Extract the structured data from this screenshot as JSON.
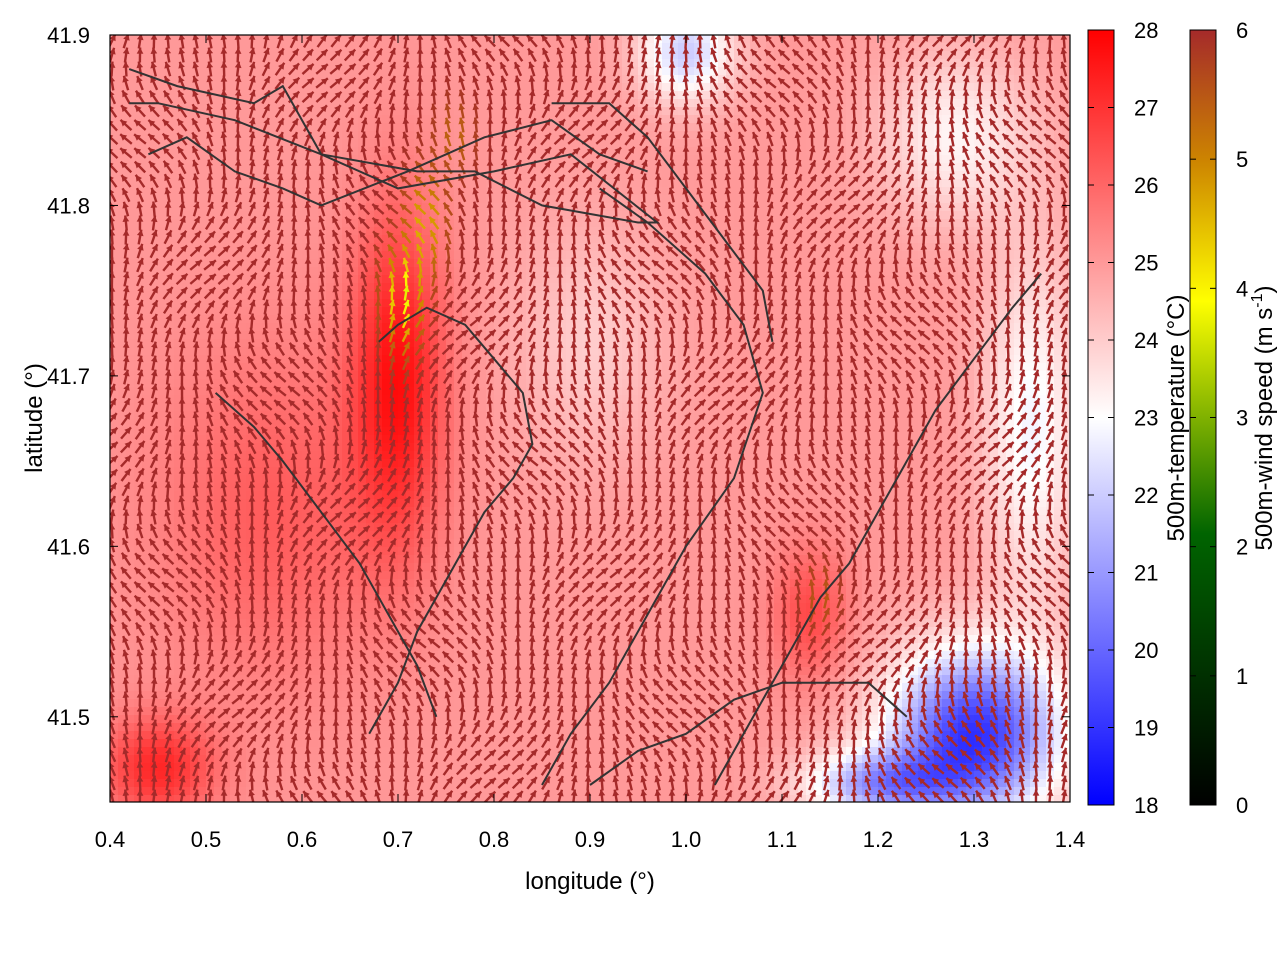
{
  "chart_data": {
    "type": "heatmap",
    "title": "",
    "xlabel": "longitude (°)",
    "ylabel": "latitude (°)",
    "xlim": [
      0.4,
      1.4
    ],
    "ylim": [
      41.45,
      41.9
    ],
    "x_ticks": [
      "0.4",
      "0.5",
      "0.6",
      "0.7",
      "0.8",
      "0.9",
      "1.0",
      "1.1",
      "1.2",
      "1.3",
      "1.4"
    ],
    "y_ticks": [
      "41.5",
      "41.6",
      "41.7",
      "41.8",
      "41.9"
    ],
    "temperature_colorbar": {
      "label": "500m-temperature (°C)",
      "range": [
        18,
        28
      ],
      "ticks": [
        "18",
        "19",
        "20",
        "21",
        "22",
        "23",
        "24",
        "25",
        "26",
        "27",
        "28"
      ],
      "colors": [
        "#0000ff",
        "#ffffff",
        "#ff0000"
      ]
    },
    "wind_colorbar": {
      "label": "500m-wind speed (m s-1)",
      "label_main": "500m-wind speed (m s",
      "label_sup": "-1",
      "label_end": ")",
      "range": [
        0,
        6
      ],
      "ticks": [
        "0",
        "1",
        "2",
        "3",
        "4",
        "5",
        "6"
      ],
      "colors": [
        "#000000",
        "#006400",
        "#ffff00",
        "#cd8500",
        "#a52a2a"
      ]
    },
    "temperature_field": {
      "base": 25.0,
      "features": [
        {
          "lon": 0.7,
          "lat": 41.7,
          "dT": 2.6,
          "slon": 0.05,
          "slat": 0.1
        },
        {
          "lon": 0.45,
          "lat": 41.47,
          "dT": 2.2,
          "slon": 0.06,
          "slat": 0.03
        },
        {
          "lon": 0.57,
          "lat": 41.62,
          "dT": 1.2,
          "slon": 0.12,
          "slat": 0.1
        },
        {
          "lon": 1.13,
          "lat": 41.56,
          "dT": 1.6,
          "slon": 0.04,
          "slat": 0.04
        },
        {
          "lon": 1.3,
          "lat": 41.49,
          "dT": -6.0,
          "slon": 0.09,
          "slat": 0.05
        },
        {
          "lon": 1.2,
          "lat": 41.46,
          "dT": -3.5,
          "slon": 0.08,
          "slat": 0.02
        },
        {
          "lon": 1.36,
          "lat": 41.67,
          "dT": -2.2,
          "slon": 0.05,
          "slat": 0.1
        },
        {
          "lon": 1.0,
          "lat": 41.89,
          "dT": -3.0,
          "slon": 0.05,
          "slat": 0.03
        },
        {
          "lon": 1.28,
          "lat": 41.84,
          "dT": -1.8,
          "slon": 0.08,
          "slat": 0.05
        },
        {
          "lon": 0.9,
          "lat": 41.72,
          "dT": -1.0,
          "slon": 0.08,
          "slat": 0.07
        }
      ]
    },
    "wind_field": {
      "max_speed": 6,
      "slow_zone": [
        {
          "lon": 0.705,
          "lat": 41.745,
          "depth": 3.2,
          "slon": 0.02,
          "slat": 0.03
        },
        {
          "lon": 0.73,
          "lat": 41.79,
          "depth": 2.0,
          "slon": 0.02,
          "slat": 0.03
        },
        {
          "lon": 0.76,
          "lat": 41.84,
          "depth": 1.0,
          "slon": 0.02,
          "slat": 0.02
        },
        {
          "lon": 1.14,
          "lat": 41.57,
          "depth": 0.8,
          "slon": 0.02,
          "slat": 0.02
        }
      ]
    },
    "contours": [
      {
        "lon": [
          0.42,
          0.47,
          0.55,
          0.58,
          0.62,
          0.7,
          0.8,
          0.88,
          0.97,
          0.95,
          0.85,
          0.78,
          0.72,
          0.62,
          0.53,
          0.45,
          0.42
        ],
        "lat": [
          41.88,
          41.87,
          41.86,
          41.87,
          41.83,
          41.81,
          41.82,
          41.83,
          41.79,
          41.79,
          41.8,
          41.82,
          41.82,
          41.83,
          41.85,
          41.86,
          41.86
        ]
      },
      {
        "lon": [
          0.44,
          0.48,
          0.53,
          0.58,
          0.62,
          0.71,
          0.79,
          0.86,
          0.91,
          0.96
        ],
        "lat": [
          41.83,
          41.84,
          41.82,
          41.81,
          41.8,
          41.82,
          41.84,
          41.85,
          41.83,
          41.82
        ]
      },
      {
        "lon": [
          0.67,
          0.7,
          0.72,
          0.75,
          0.77,
          0.79,
          0.82,
          0.84,
          0.83,
          0.8,
          0.77,
          0.73,
          0.7,
          0.68
        ],
        "lat": [
          41.49,
          41.52,
          41.55,
          41.58,
          41.6,
          41.62,
          41.64,
          41.66,
          41.69,
          41.71,
          41.73,
          41.74,
          41.73,
          41.72
        ]
      },
      {
        "lon": [
          0.51,
          0.55,
          0.58,
          0.62,
          0.66,
          0.69,
          0.72,
          0.74
        ],
        "lat": [
          41.69,
          41.67,
          41.65,
          41.62,
          41.59,
          41.56,
          41.53,
          41.5
        ]
      },
      {
        "lon": [
          0.91,
          0.96,
          1.02,
          1.06,
          1.08,
          1.05,
          1.0,
          0.96,
          0.92,
          0.88,
          0.85
        ],
        "lat": [
          41.81,
          41.79,
          41.76,
          41.73,
          41.69,
          41.64,
          41.6,
          41.56,
          41.52,
          41.49,
          41.46
        ]
      },
      {
        "lon": [
          0.86,
          0.92,
          0.96,
          1.0,
          1.04,
          1.08,
          1.09
        ],
        "lat": [
          41.86,
          41.86,
          41.84,
          41.81,
          41.78,
          41.75,
          41.72
        ]
      },
      {
        "lon": [
          1.03,
          1.07,
          1.11,
          1.14,
          1.17,
          1.2,
          1.23,
          1.26,
          1.3,
          1.34,
          1.37
        ],
        "lat": [
          41.46,
          41.5,
          41.54,
          41.57,
          41.59,
          41.62,
          41.65,
          41.68,
          41.71,
          41.74,
          41.76
        ]
      },
      {
        "lon": [
          0.9,
          0.95,
          1.0,
          1.05,
          1.1,
          1.15,
          1.19,
          1.23
        ],
        "lat": [
          41.46,
          41.48,
          41.49,
          41.51,
          41.52,
          41.52,
          41.52,
          41.5
        ]
      }
    ]
  }
}
